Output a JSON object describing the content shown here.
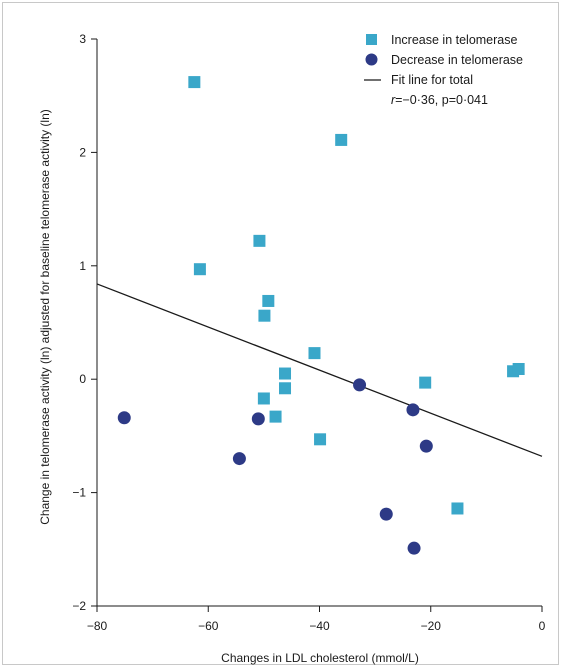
{
  "colors": {
    "increase": "#3aa7c9",
    "decrease": "#2d3a86",
    "line": "#1a1a1a"
  },
  "chart_data": {
    "type": "scatter",
    "xlabel": "Changes in LDL cholesterol (mmol/L)",
    "ylabel": "Change in telomerase activity (ln) adjusted for baseline telomerase activity (ln)",
    "xlim": [
      -80,
      0
    ],
    "ylim": [
      -2,
      3
    ],
    "xticks": [
      -80,
      -60,
      -40,
      -20,
      0
    ],
    "xtick_labels": [
      "−80",
      "−60",
      "−40",
      "−20",
      "0"
    ],
    "yticks": [
      -2,
      -1,
      0,
      1,
      2,
      3
    ],
    "ytick_labels": [
      "−2",
      "−1",
      "0",
      "1",
      "2",
      "3"
    ],
    "grid": false,
    "legend_position": "top-right",
    "legend": {
      "increase": "Increase in telomerase",
      "decrease": "Decrease in telomerase",
      "fit": "Fit line for total",
      "stat_r": "r",
      "stat_rest": "=−0·36, p=0·041"
    },
    "series": [
      {
        "name": "Increase in telomerase",
        "marker": "square",
        "points": [
          [
            -62.5,
            2.62
          ],
          [
            -36.1,
            2.11
          ],
          [
            -61.5,
            0.97
          ],
          [
            -50.8,
            1.22
          ],
          [
            -49.2,
            0.69
          ],
          [
            -49.9,
            0.56
          ],
          [
            -40.9,
            0.23
          ],
          [
            -46.2,
            0.05
          ],
          [
            -46.2,
            -0.08
          ],
          [
            -50.0,
            -0.17
          ],
          [
            -47.9,
            -0.33
          ],
          [
            -39.9,
            -0.53
          ],
          [
            -21.0,
            -0.03
          ],
          [
            -5.2,
            0.07
          ],
          [
            -4.2,
            0.09
          ],
          [
            -15.2,
            -1.14
          ]
        ]
      },
      {
        "name": "Decrease in telomerase",
        "marker": "circle",
        "points": [
          [
            -75.1,
            -0.34
          ],
          [
            -51.0,
            -0.35
          ],
          [
            -54.4,
            -0.7
          ],
          [
            -32.8,
            -0.05
          ],
          [
            -23.2,
            -0.27
          ],
          [
            -20.8,
            -0.59
          ],
          [
            -28.0,
            -1.19
          ],
          [
            -23.0,
            -1.49
          ]
        ]
      },
      {
        "name": "Fit line for total",
        "marker": "line",
        "points": [
          [
            -80,
            0.84
          ],
          [
            0,
            -0.68
          ]
        ]
      }
    ]
  }
}
